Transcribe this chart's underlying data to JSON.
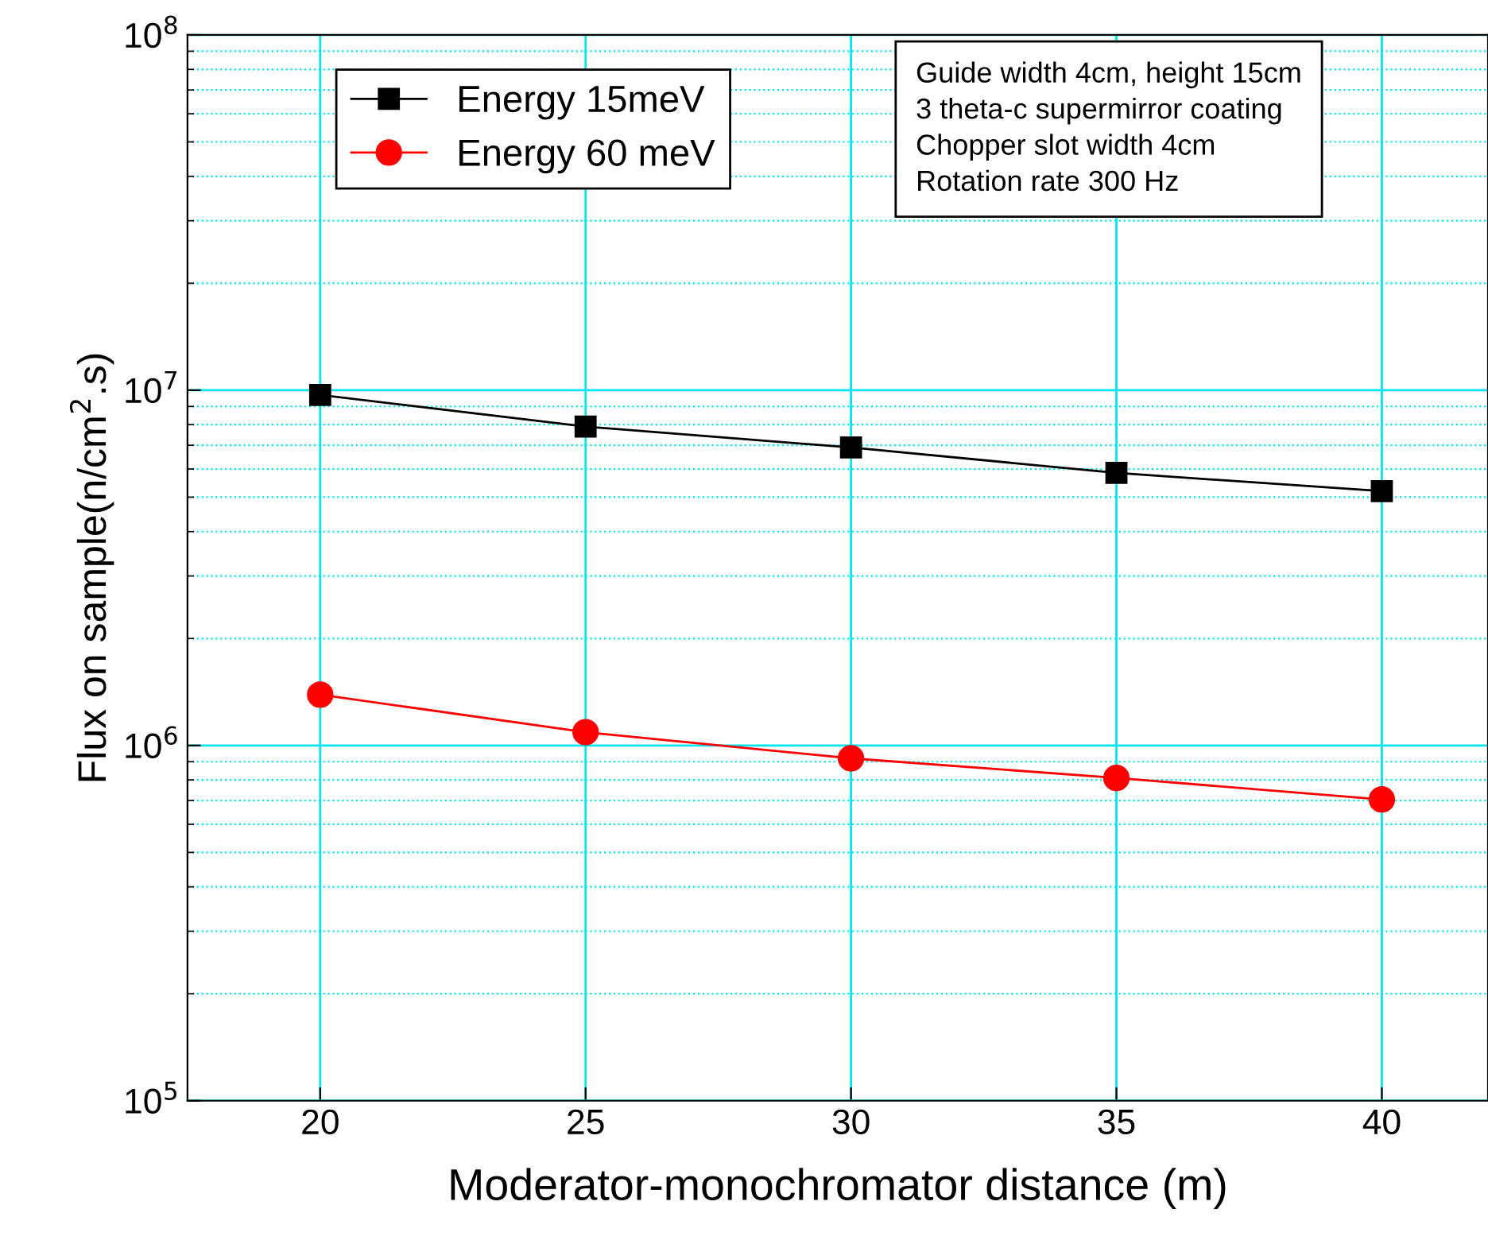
{
  "chart_data": {
    "type": "line",
    "xlabel": "Moderator-monochromator distance (m)",
    "ylabel": "Flux on sample(n/cm$^{2}$.s)",
    "x": [
      20,
      25,
      30,
      35,
      40
    ],
    "series": [
      {
        "name": "Energy 15meV",
        "color": "#000000",
        "marker": "square",
        "values": [
          9700000,
          7900000,
          6900000,
          5850000,
          5200000
        ]
      },
      {
        "name": "Energy 60 meV",
        "color": "#ff0000",
        "marker": "circle",
        "values": [
          1390000,
          1090000,
          920000,
          810000,
          705000
        ]
      }
    ],
    "log": "y",
    "xlim": [
      17.5,
      42
    ],
    "ylim": [
      100000,
      100000000
    ],
    "xticks": [
      20,
      25,
      30,
      35,
      40
    ],
    "yticks": [
      {
        "value": 100000,
        "label": "10$^{5}$"
      },
      {
        "value": 200000,
        "label": null
      },
      {
        "value": 300000,
        "label": null
      },
      {
        "value": 400000,
        "label": null
      },
      {
        "value": 500000,
        "label": null
      },
      {
        "value": 600000,
        "label": null
      },
      {
        "value": 700000,
        "label": null
      },
      {
        "value": 800000,
        "label": null
      },
      {
        "value": 900000,
        "label": null
      },
      {
        "value": 1000000,
        "label": "10$^{6}$"
      },
      {
        "value": 2000000,
        "label": null
      },
      {
        "value": 3000000,
        "label": null
      },
      {
        "value": 4000000,
        "label": null
      },
      {
        "value": 5000000,
        "label": null
      },
      {
        "value": 6000000,
        "label": null
      },
      {
        "value": 7000000,
        "label": null
      },
      {
        "value": 8000000,
        "label": null
      },
      {
        "value": 9000000,
        "label": null
      },
      {
        "value": 10000000,
        "label": "10$^{7}$"
      },
      {
        "value": 20000000,
        "label": null
      },
      {
        "value": 30000000,
        "label": null
      },
      {
        "value": 40000000,
        "label": null
      },
      {
        "value": 50000000,
        "label": null
      },
      {
        "value": 60000000,
        "label": null
      },
      {
        "value": 70000000,
        "label": null
      },
      {
        "value": 80000000,
        "label": null
      },
      {
        "value": 90000000,
        "label": null
      },
      {
        "value": 100000000,
        "label": "10$^{8}$"
      }
    ],
    "grid": true,
    "legend": "top left",
    "line_style": "solid",
    "annotations": [
      "Guide width 4cm, height 15cm\n3 theta-c supermirror coating\nChopper slot width 4cm\nRotation rate 300 Hz"
    ]
  }
}
